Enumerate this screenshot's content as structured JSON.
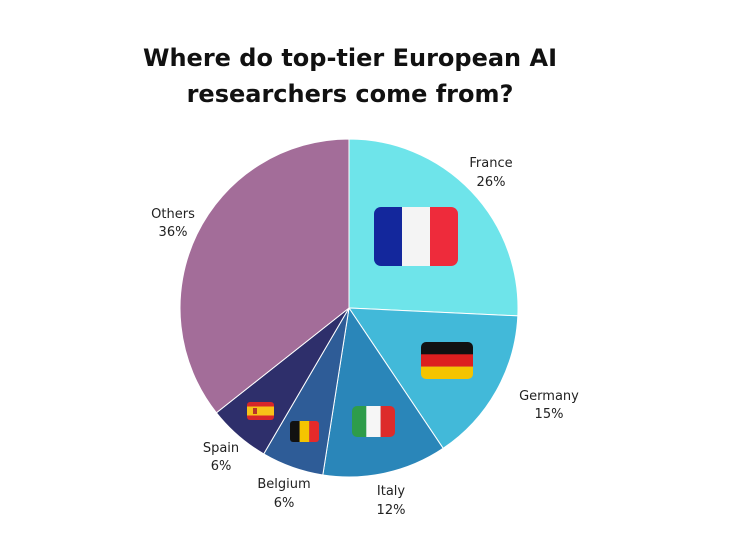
{
  "chart_data": {
    "type": "pie",
    "title_lines": [
      "Where do top-tier European AI",
      "researchers come from?"
    ],
    "slices": [
      {
        "name": "France",
        "label": "26%",
        "value": 26,
        "color": "#6ee4ea",
        "icon": "france-flag-icon"
      },
      {
        "name": "Germany",
        "label": "15%",
        "value": 15,
        "color": "#42b9d9",
        "icon": "germany-flag-icon"
      },
      {
        "name": "Italy",
        "label": "12%",
        "value": 12,
        "color": "#2a86b9",
        "icon": "italy-flag-icon"
      },
      {
        "name": "Belgium",
        "label": "6%",
        "value": 6,
        "color": "#2e5c97",
        "icon": "belgium-flag-icon"
      },
      {
        "name": "Spain",
        "label": "6%",
        "value": 6,
        "color": "#2e2f6b",
        "icon": "spain-flag-icon"
      },
      {
        "name": "Others",
        "label": "36%",
        "value": 36,
        "color": "#a36d99",
        "icon": ""
      }
    ],
    "legend": "none"
  }
}
